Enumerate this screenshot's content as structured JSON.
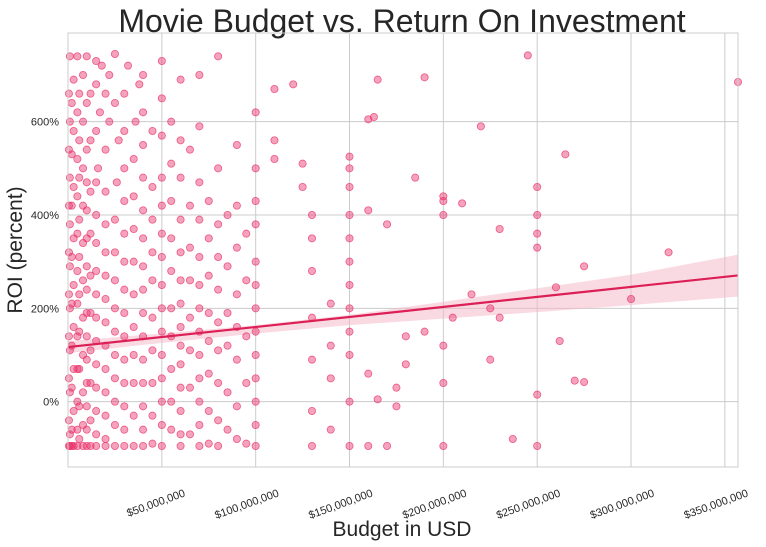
{
  "chart_data": {
    "type": "scatter",
    "title": "Movie Budget vs. Return On Investment",
    "xlabel": "Budget in USD",
    "ylabel": "ROI (percent)",
    "xlim": [
      0,
      357000000
    ],
    "ylim": [
      -140,
      790
    ],
    "x_ticks": [
      {
        "value": 50000000,
        "label": "$50,000,000"
      },
      {
        "value": 100000000,
        "label": "$100,000,000"
      },
      {
        "value": 150000000,
        "label": "$150,000,000"
      },
      {
        "value": 200000000,
        "label": "$200,000,000"
      },
      {
        "value": 250000000,
        "label": "$250,000,000"
      },
      {
        "value": 300000000,
        "label": "$300,000,000"
      },
      {
        "value": 350000000,
        "label": "$350,000,000"
      }
    ],
    "y_ticks": [
      {
        "value": 0,
        "label": "0%"
      },
      {
        "value": 200,
        "label": "200%"
      },
      {
        "value": 400,
        "label": "400%"
      },
      {
        "value": 600,
        "label": "600%"
      }
    ],
    "grid": true,
    "point_color": "#e8316b",
    "line_color": "#dc1f55",
    "band_color": "#f4b6c8",
    "regression": {
      "intercept": 117,
      "slope_per_million": 0.43
    },
    "confidence_band": [
      {
        "x": 0,
        "low": 104,
        "high": 130
      },
      {
        "x": 50000000,
        "low": 126,
        "high": 146
      },
      {
        "x": 100000000,
        "low": 146,
        "high": 164
      },
      {
        "x": 150000000,
        "low": 164,
        "high": 186
      },
      {
        "x": 200000000,
        "low": 178,
        "high": 214
      },
      {
        "x": 250000000,
        "low": 192,
        "high": 243
      },
      {
        "x": 300000000,
        "low": 207,
        "high": 272
      },
      {
        "x": 357000000,
        "low": 225,
        "high": 315
      }
    ],
    "points": [
      [
        165000000,
        690
      ],
      [
        160000000,
        605
      ],
      [
        163000000,
        610
      ],
      [
        190000000,
        695
      ],
      [
        245000000,
        742
      ],
      [
        357000000,
        685
      ],
      [
        220000000,
        590
      ],
      [
        150000000,
        525
      ],
      [
        150000000,
        500
      ],
      [
        150000000,
        460
      ],
      [
        185000000,
        480
      ],
      [
        200000000,
        440
      ],
      [
        200000000,
        430
      ],
      [
        200000000,
        400
      ],
      [
        170000000,
        380
      ],
      [
        160000000,
        410
      ],
      [
        210000000,
        425
      ],
      [
        230000000,
        370
      ],
      [
        250000000,
        460
      ],
      [
        250000000,
        400
      ],
      [
        250000000,
        360
      ],
      [
        250000000,
        330
      ],
      [
        265000000,
        530
      ],
      [
        275000000,
        290
      ],
      [
        320000000,
        320
      ],
      [
        300000000,
        220
      ],
      [
        260000000,
        245
      ],
      [
        262000000,
        130
      ],
      [
        270000000,
        45
      ],
      [
        275000000,
        42
      ],
      [
        250000000,
        15
      ],
      [
        250000000,
        -95
      ],
      [
        237000000,
        -80
      ],
      [
        225000000,
        90
      ],
      [
        230000000,
        180
      ],
      [
        225000000,
        200
      ],
      [
        215000000,
        230
      ],
      [
        205000000,
        180
      ],
      [
        200000000,
        -95
      ],
      [
        200000000,
        40
      ],
      [
        200000000,
        120
      ],
      [
        190000000,
        150
      ],
      [
        180000000,
        140
      ],
      [
        180000000,
        80
      ],
      [
        175000000,
        30
      ],
      [
        175000000,
        -10
      ],
      [
        170000000,
        -95
      ],
      [
        165000000,
        5
      ],
      [
        160000000,
        -95
      ],
      [
        160000000,
        60
      ],
      [
        150000000,
        -95
      ],
      [
        150000000,
        0
      ],
      [
        150000000,
        100
      ],
      [
        150000000,
        150
      ],
      [
        150000000,
        200
      ],
      [
        150000000,
        250
      ],
      [
        150000000,
        300
      ],
      [
        150000000,
        350
      ],
      [
        150000000,
        400
      ],
      [
        140000000,
        210
      ],
      [
        140000000,
        120
      ],
      [
        140000000,
        50
      ],
      [
        140000000,
        -60
      ],
      [
        130000000,
        400
      ],
      [
        130000000,
        350
      ],
      [
        130000000,
        280
      ],
      [
        130000000,
        180
      ],
      [
        130000000,
        90
      ],
      [
        130000000,
        -20
      ],
      [
        130000000,
        -95
      ],
      [
        125000000,
        460
      ],
      [
        125000000,
        510
      ],
      [
        120000000,
        680
      ],
      [
        110000000,
        670
      ],
      [
        110000000,
        560
      ],
      [
        110000000,
        520
      ],
      [
        100000000,
        620
      ],
      [
        100000000,
        500
      ],
      [
        100000000,
        430
      ],
      [
        100000000,
        380
      ],
      [
        100000000,
        300
      ],
      [
        100000000,
        250
      ],
      [
        100000000,
        200
      ],
      [
        100000000,
        150
      ],
      [
        100000000,
        100
      ],
      [
        100000000,
        50
      ],
      [
        100000000,
        0
      ],
      [
        100000000,
        -50
      ],
      [
        100000000,
        -95
      ],
      [
        95000000,
        360
      ],
      [
        95000000,
        260
      ],
      [
        95000000,
        140
      ],
      [
        95000000,
        40
      ],
      [
        95000000,
        -90
      ],
      [
        90000000,
        550
      ],
      [
        90000000,
        420
      ],
      [
        90000000,
        330
      ],
      [
        90000000,
        230
      ],
      [
        90000000,
        160
      ],
      [
        90000000,
        90
      ],
      [
        90000000,
        -10
      ],
      [
        90000000,
        -80
      ],
      [
        85000000,
        400
      ],
      [
        85000000,
        290
      ],
      [
        85000000,
        190
      ],
      [
        85000000,
        120
      ],
      [
        85000000,
        20
      ],
      [
        85000000,
        -60
      ],
      [
        80000000,
        740
      ],
      [
        80000000,
        500
      ],
      [
        80000000,
        380
      ],
      [
        80000000,
        310
      ],
      [
        80000000,
        240
      ],
      [
        80000000,
        170
      ],
      [
        80000000,
        110
      ],
      [
        80000000,
        40
      ],
      [
        80000000,
        -40
      ],
      [
        80000000,
        -95
      ],
      [
        75000000,
        430
      ],
      [
        75000000,
        350
      ],
      [
        75000000,
        270
      ],
      [
        75000000,
        190
      ],
      [
        75000000,
        130
      ],
      [
        75000000,
        60
      ],
      [
        75000000,
        -20
      ],
      [
        75000000,
        -90
      ],
      [
        70000000,
        700
      ],
      [
        70000000,
        590
      ],
      [
        70000000,
        470
      ],
      [
        70000000,
        390
      ],
      [
        70000000,
        310
      ],
      [
        70000000,
        250
      ],
      [
        70000000,
        200
      ],
      [
        70000000,
        150
      ],
      [
        70000000,
        100
      ],
      [
        70000000,
        50
      ],
      [
        70000000,
        0
      ],
      [
        70000000,
        -50
      ],
      [
        70000000,
        -95
      ],
      [
        65000000,
        540
      ],
      [
        65000000,
        420
      ],
      [
        65000000,
        330
      ],
      [
        65000000,
        260
      ],
      [
        65000000,
        180
      ],
      [
        65000000,
        110
      ],
      [
        65000000,
        30
      ],
      [
        65000000,
        -70
      ],
      [
        60000000,
        690
      ],
      [
        60000000,
        560
      ],
      [
        60000000,
        480
      ],
      [
        60000000,
        390
      ],
      [
        60000000,
        320
      ],
      [
        60000000,
        260
      ],
      [
        60000000,
        210
      ],
      [
        60000000,
        160
      ],
      [
        60000000,
        120
      ],
      [
        60000000,
        80
      ],
      [
        60000000,
        30
      ],
      [
        60000000,
        -20
      ],
      [
        60000000,
        -70
      ],
      [
        60000000,
        -95
      ],
      [
        55000000,
        600
      ],
      [
        55000000,
        510
      ],
      [
        55000000,
        430
      ],
      [
        55000000,
        350
      ],
      [
        55000000,
        280
      ],
      [
        55000000,
        200
      ],
      [
        55000000,
        140
      ],
      [
        55000000,
        70
      ],
      [
        55000000,
        0
      ],
      [
        55000000,
        -60
      ],
      [
        50000000,
        730
      ],
      [
        50000000,
        650
      ],
      [
        50000000,
        570
      ],
      [
        50000000,
        480
      ],
      [
        50000000,
        420
      ],
      [
        50000000,
        360
      ],
      [
        50000000,
        310
      ],
      [
        50000000,
        250
      ],
      [
        50000000,
        200
      ],
      [
        50000000,
        150
      ],
      [
        50000000,
        100
      ],
      [
        50000000,
        50
      ],
      [
        50000000,
        0
      ],
      [
        50000000,
        -50
      ],
      [
        50000000,
        -95
      ],
      [
        45000000,
        580
      ],
      [
        45000000,
        460
      ],
      [
        45000000,
        390
      ],
      [
        45000000,
        320
      ],
      [
        45000000,
        260
      ],
      [
        45000000,
        180
      ],
      [
        45000000,
        110
      ],
      [
        45000000,
        40
      ],
      [
        45000000,
        -30
      ],
      [
        45000000,
        -90
      ],
      [
        40000000,
        700
      ],
      [
        40000000,
        620
      ],
      [
        40000000,
        550
      ],
      [
        40000000,
        480
      ],
      [
        40000000,
        410
      ],
      [
        40000000,
        350
      ],
      [
        40000000,
        290
      ],
      [
        40000000,
        240
      ],
      [
        40000000,
        190
      ],
      [
        40000000,
        140
      ],
      [
        40000000,
        90
      ],
      [
        40000000,
        40
      ],
      [
        40000000,
        -10
      ],
      [
        40000000,
        -60
      ],
      [
        40000000,
        -95
      ],
      [
        38000000,
        680
      ],
      [
        36000000,
        600
      ],
      [
        35000000,
        520
      ],
      [
        35000000,
        440
      ],
      [
        35000000,
        370
      ],
      [
        35000000,
        300
      ],
      [
        35000000,
        230
      ],
      [
        35000000,
        160
      ],
      [
        35000000,
        100
      ],
      [
        35000000,
        40
      ],
      [
        35000000,
        -30
      ],
      [
        35000000,
        -95
      ],
      [
        32000000,
        720
      ],
      [
        30000000,
        660
      ],
      [
        30000000,
        580
      ],
      [
        30000000,
        500
      ],
      [
        30000000,
        430
      ],
      [
        30000000,
        360
      ],
      [
        30000000,
        300
      ],
      [
        30000000,
        240
      ],
      [
        30000000,
        190
      ],
      [
        30000000,
        140
      ],
      [
        30000000,
        90
      ],
      [
        30000000,
        40
      ],
      [
        30000000,
        -10
      ],
      [
        30000000,
        -60
      ],
      [
        30000000,
        -95
      ],
      [
        27000000,
        560
      ],
      [
        26000000,
        470
      ],
      [
        25000000,
        745
      ],
      [
        25000000,
        640
      ],
      [
        25000000,
        390
      ],
      [
        25000000,
        320
      ],
      [
        25000000,
        260
      ],
      [
        25000000,
        200
      ],
      [
        25000000,
        150
      ],
      [
        25000000,
        100
      ],
      [
        25000000,
        50
      ],
      [
        25000000,
        0
      ],
      [
        25000000,
        -50
      ],
      [
        25000000,
        -95
      ],
      [
        22000000,
        700
      ],
      [
        22000000,
        600
      ],
      [
        20000000,
        660
      ],
      [
        20000000,
        540
      ],
      [
        20000000,
        450
      ],
      [
        20000000,
        380
      ],
      [
        20000000,
        320
      ],
      [
        20000000,
        270
      ],
      [
        20000000,
        220
      ],
      [
        20000000,
        170
      ],
      [
        20000000,
        120
      ],
      [
        20000000,
        70
      ],
      [
        20000000,
        20
      ],
      [
        20000000,
        -30
      ],
      [
        20000000,
        -80
      ],
      [
        20000000,
        -95
      ],
      [
        18000000,
        720
      ],
      [
        17000000,
        620
      ],
      [
        16000000,
        500
      ],
      [
        15000000,
        730
      ],
      [
        15000000,
        680
      ],
      [
        15000000,
        580
      ],
      [
        15000000,
        470
      ],
      [
        15000000,
        400
      ],
      [
        15000000,
        340
      ],
      [
        15000000,
        280
      ],
      [
        15000000,
        230
      ],
      [
        15000000,
        180
      ],
      [
        15000000,
        130
      ],
      [
        15000000,
        80
      ],
      [
        15000000,
        30
      ],
      [
        15000000,
        -20
      ],
      [
        15000000,
        -70
      ],
      [
        15000000,
        -95
      ],
      [
        12000000,
        660
      ],
      [
        12000000,
        560
      ],
      [
        12000000,
        450
      ],
      [
        12000000,
        360
      ],
      [
        12000000,
        270
      ],
      [
        12000000,
        190
      ],
      [
        12000000,
        110
      ],
      [
        12000000,
        40
      ],
      [
        12000000,
        -40
      ],
      [
        12000000,
        -95
      ],
      [
        10000000,
        740
      ],
      [
        10000000,
        640
      ],
      [
        10000000,
        540
      ],
      [
        10000000,
        470
      ],
      [
        10000000,
        410
      ],
      [
        10000000,
        350
      ],
      [
        10000000,
        290
      ],
      [
        10000000,
        240
      ],
      [
        10000000,
        190
      ],
      [
        10000000,
        140
      ],
      [
        10000000,
        90
      ],
      [
        10000000,
        40
      ],
      [
        10000000,
        -10
      ],
      [
        10000000,
        -60
      ],
      [
        10000000,
        -95
      ],
      [
        8000000,
        700
      ],
      [
        8000000,
        600
      ],
      [
        8000000,
        500
      ],
      [
        8000000,
        420
      ],
      [
        8000000,
        340
      ],
      [
        8000000,
        260
      ],
      [
        8000000,
        180
      ],
      [
        8000000,
        100
      ],
      [
        8000000,
        20
      ],
      [
        8000000,
        -50
      ],
      [
        8000000,
        -95
      ],
      [
        6000000,
        660
      ],
      [
        6000000,
        560
      ],
      [
        6000000,
        480
      ],
      [
        6000000,
        390
      ],
      [
        6000000,
        310
      ],
      [
        6000000,
        230
      ],
      [
        6000000,
        150
      ],
      [
        6000000,
        70
      ],
      [
        6000000,
        -10
      ],
      [
        6000000,
        -80
      ],
      [
        5000000,
        740
      ],
      [
        5000000,
        620
      ],
      [
        5000000,
        520
      ],
      [
        5000000,
        440
      ],
      [
        5000000,
        360
      ],
      [
        5000000,
        280
      ],
      [
        5000000,
        210
      ],
      [
        5000000,
        140
      ],
      [
        5000000,
        70
      ],
      [
        5000000,
        0
      ],
      [
        5000000,
        -60
      ],
      [
        5000000,
        -95
      ],
      [
        3000000,
        690
      ],
      [
        3000000,
        580
      ],
      [
        3000000,
        460
      ],
      [
        3000000,
        350
      ],
      [
        3000000,
        250
      ],
      [
        3000000,
        160
      ],
      [
        3000000,
        70
      ],
      [
        3000000,
        -20
      ],
      [
        3000000,
        -95
      ],
      [
        2000000,
        640
      ],
      [
        2000000,
        530
      ],
      [
        2000000,
        420
      ],
      [
        2000000,
        310
      ],
      [
        2000000,
        210
      ],
      [
        2000000,
        120
      ],
      [
        2000000,
        30
      ],
      [
        2000000,
        -60
      ],
      [
        2000000,
        -95
      ],
      [
        1000000,
        740
      ],
      [
        1000000,
        600
      ],
      [
        1000000,
        480
      ],
      [
        1000000,
        380
      ],
      [
        1000000,
        290
      ],
      [
        1000000,
        200
      ],
      [
        1000000,
        110
      ],
      [
        1000000,
        20
      ],
      [
        1000000,
        -70
      ],
      [
        1000000,
        -95
      ],
      [
        500000,
        660
      ],
      [
        500000,
        540
      ],
      [
        500000,
        420
      ],
      [
        500000,
        320
      ],
      [
        500000,
        230
      ],
      [
        500000,
        140
      ],
      [
        500000,
        50
      ],
      [
        500000,
        -40
      ],
      [
        500000,
        -95
      ]
    ]
  }
}
